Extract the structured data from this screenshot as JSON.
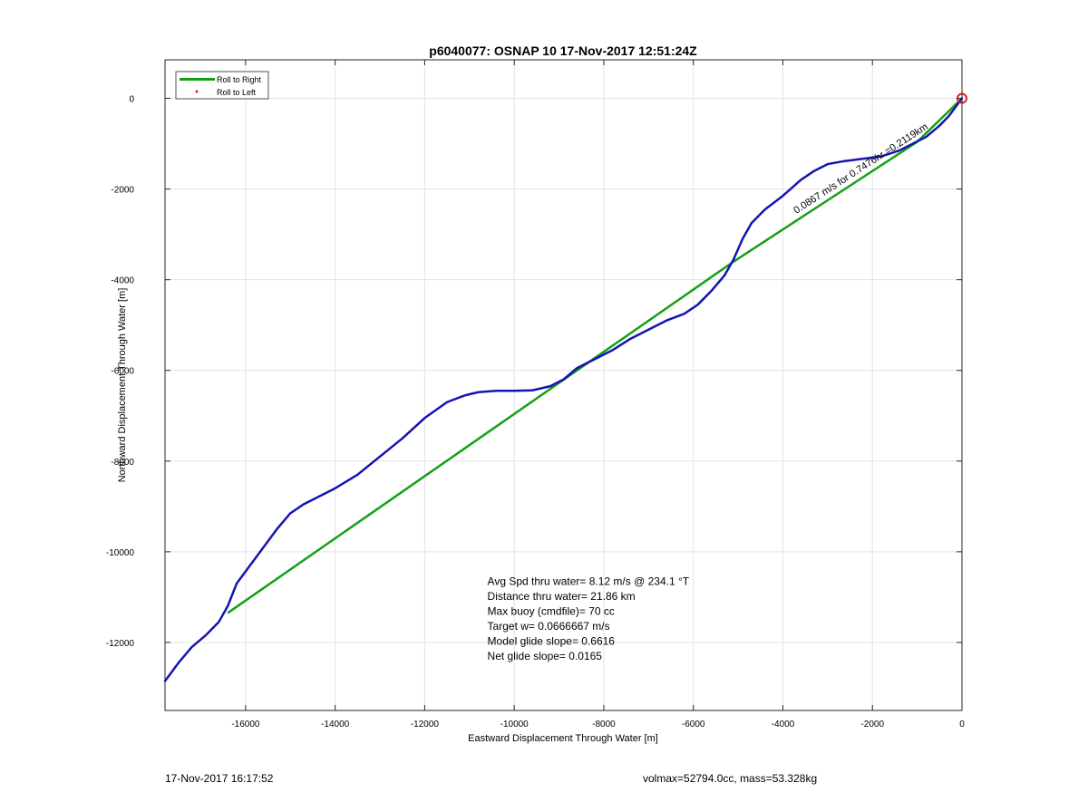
{
  "chart_data": {
    "type": "line",
    "title": "p6040077: OSNAP 10 17-Nov-2017 12:51:24Z",
    "xlabel": "Eastward Displacement Through Water [m]",
    "ylabel": "Northward Displacement Through Water [m]",
    "xlim": [
      -17800,
      0
    ],
    "ylim": [
      -13500,
      850
    ],
    "xticks": [
      -16000,
      -14000,
      -12000,
      -10000,
      -8000,
      -6000,
      -4000,
      -2000,
      0
    ],
    "yticks": [
      0,
      -2000,
      -4000,
      -6000,
      -8000,
      -10000,
      -12000
    ],
    "grid": true,
    "legend_position": "top-left",
    "legend": [
      {
        "label": "Roll to Right",
        "color": "#14a014",
        "style": "line"
      },
      {
        "label": "Roll to Left",
        "color": "#e02020",
        "style": "dot"
      }
    ],
    "series": [
      {
        "color": "#1414b4",
        "x": [
          -17800,
          -17500,
          -17200,
          -16900,
          -16600,
          -16400,
          -16200,
          -15900,
          -15600,
          -15300,
          -15000,
          -14700,
          -14400,
          -14000,
          -13500,
          -13000,
          -12500,
          -12000,
          -11500,
          -11100,
          -10800,
          -10400,
          -10000,
          -9600,
          -9200,
          -8900,
          -8600,
          -8200,
          -7800,
          -7400,
          -7000,
          -6600,
          -6200,
          -5900,
          -5600,
          -5300,
          -5100,
          -4900,
          -4700,
          -4400,
          -4000,
          -3600,
          -3300,
          -3000,
          -2600,
          -2200,
          -1800,
          -1400,
          -1100,
          -800,
          -500,
          -300,
          -150,
          0
        ],
        "y": [
          -12850,
          -12450,
          -12100,
          -11850,
          -11550,
          -11200,
          -10700,
          -10300,
          -9900,
          -9500,
          -9150,
          -8950,
          -8800,
          -8600,
          -8300,
          -7900,
          -7500,
          -7050,
          -6700,
          -6550,
          -6480,
          -6450,
          -6450,
          -6440,
          -6350,
          -6200,
          -5950,
          -5750,
          -5550,
          -5300,
          -5100,
          -4900,
          -4750,
          -4550,
          -4250,
          -3900,
          -3550,
          -3100,
          -2750,
          -2450,
          -2150,
          -1800,
          -1600,
          -1450,
          -1380,
          -1330,
          -1280,
          -1150,
          -1000,
          -850,
          -600,
          -400,
          -200,
          0
        ]
      },
      {
        "name": "Roll to Right",
        "color": "#14a014",
        "x": [
          -16400,
          -5100,
          -1000,
          0
        ],
        "y": [
          -11350,
          -3600,
          -960,
          0
        ]
      },
      {
        "name": "Roll to Left",
        "color": "#e02020",
        "x": [
          0
        ],
        "y": [
          0
        ]
      }
    ],
    "annotations": [
      {
        "x": -3700,
        "y": -2550,
        "angle": 33,
        "text": "0.0867 m/s for 0.7476hr =0.2119km"
      }
    ],
    "stats_box": {
      "x": -10600,
      "y": -10650,
      "lines": [
        "Avg Spd thru water=  8.12 m/s @ 234.1 °T",
        "Distance thru water= 21.86 km",
        "Max buoy (cmdfile)= 70 cc",
        "Target w= 0.0666667 m/s",
        "Model glide slope= 0.6616",
        "Net glide slope= 0.0165"
      ]
    }
  },
  "footer": {
    "left": "17-Nov-2017 16:17:52",
    "right": "volmax=52794.0cc, mass=53.328kg"
  }
}
